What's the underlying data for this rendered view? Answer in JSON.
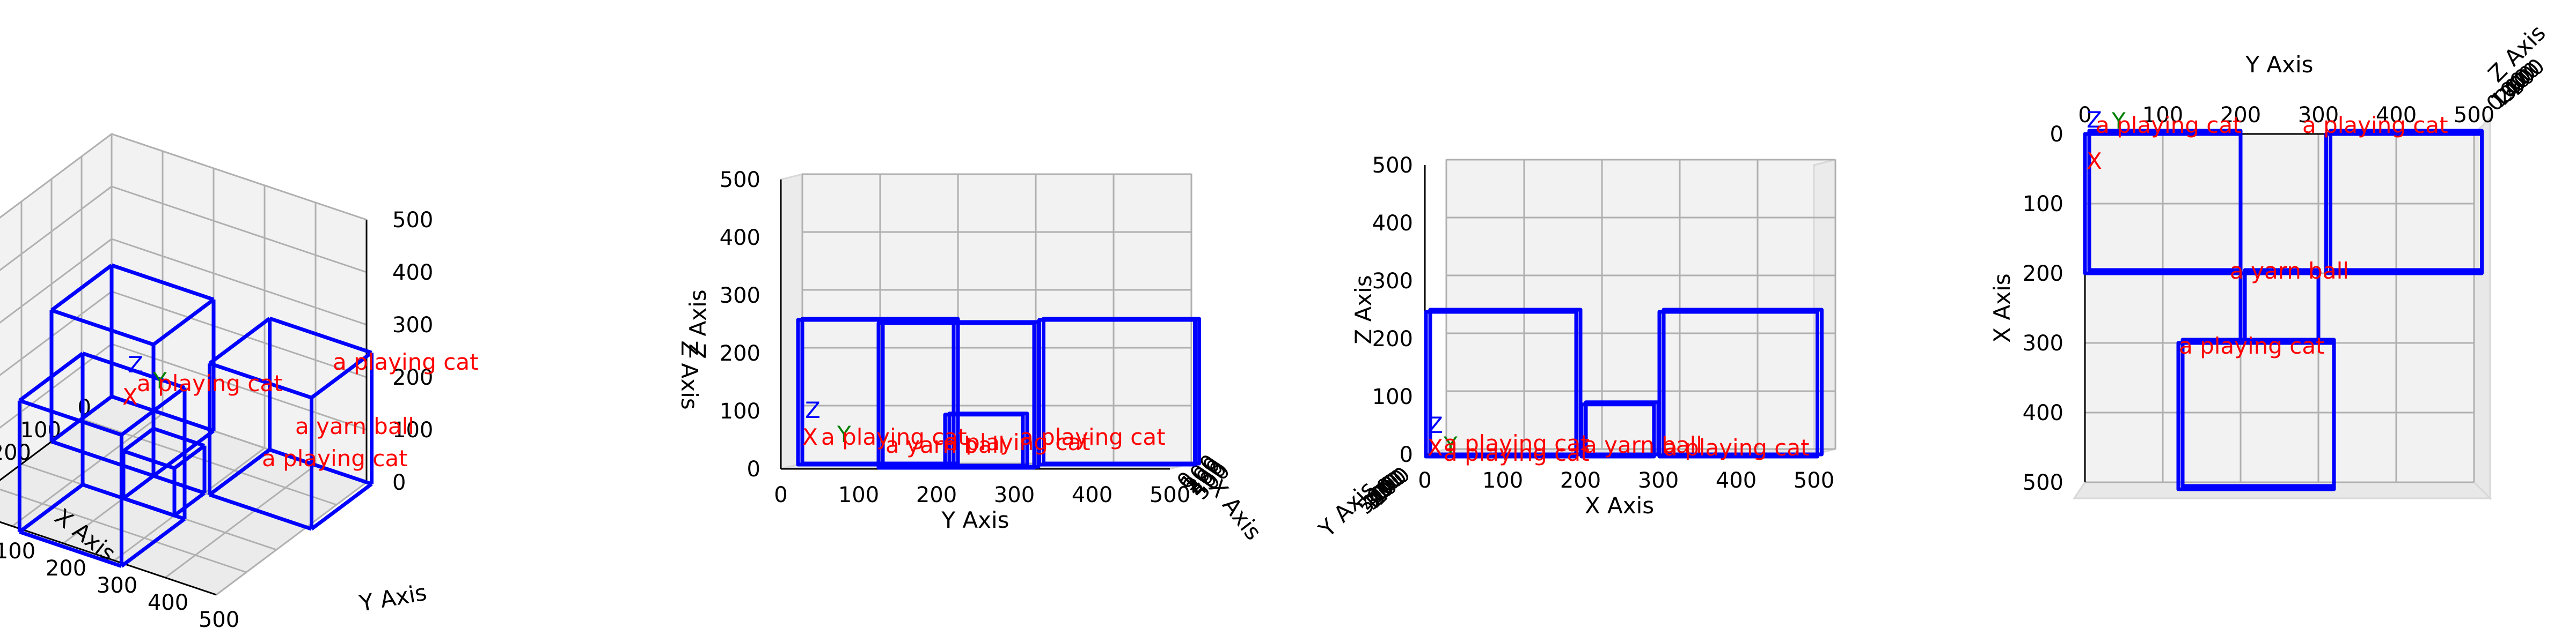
{
  "chart_data": [
    {
      "type": "3d-box",
      "view": "perspective",
      "xlabel": "X Axis",
      "ylabel": "Y Axis",
      "zlabel": "Z Axis",
      "xlim": [
        0,
        500
      ],
      "ylim": [
        0,
        500
      ],
      "zlim": [
        0,
        500
      ],
      "ticks": [
        0,
        100,
        200,
        300,
        400,
        500
      ],
      "origin_labels": {
        "x": "X",
        "y": "Y",
        "z": "Z"
      },
      "boxes": [
        {
          "label": "a playing cat",
          "x": [
            0,
            200
          ],
          "y": [
            0,
            200
          ],
          "z": [
            0,
            250
          ]
        },
        {
          "label": "a playing cat",
          "x": [
            0,
            200
          ],
          "y": [
            310,
            510
          ],
          "z": [
            0,
            250
          ]
        },
        {
          "label": "a yarn ball",
          "x": [
            200,
            300
          ],
          "y": [
            200,
            300
          ],
          "z": [
            0,
            90
          ]
        },
        {
          "label": "a playing cat",
          "x": [
            300,
            510
          ],
          "y": [
            120,
            320
          ],
          "z": [
            0,
            250
          ]
        }
      ]
    },
    {
      "type": "3d-box",
      "view": "front (Y–Z)",
      "xlabel": "Y Axis",
      "ylabel": "Z Axis",
      "depth_label": "X Axis",
      "ticks": [
        0,
        100,
        200,
        300,
        400,
        500
      ]
    },
    {
      "type": "3d-box",
      "view": "side (X–Z)",
      "xlabel": "X Axis",
      "ylabel": "Z Axis",
      "depth_label": "Y Axis",
      "ticks": [
        0,
        100,
        200,
        300,
        400,
        500
      ]
    },
    {
      "type": "3d-box",
      "view": "top (Y–X)",
      "xlabel": "Y Axis",
      "ylabel": "X Axis",
      "depth_label": "Z Axis",
      "ticks": [
        0,
        100,
        200,
        300,
        400,
        500
      ]
    }
  ]
}
